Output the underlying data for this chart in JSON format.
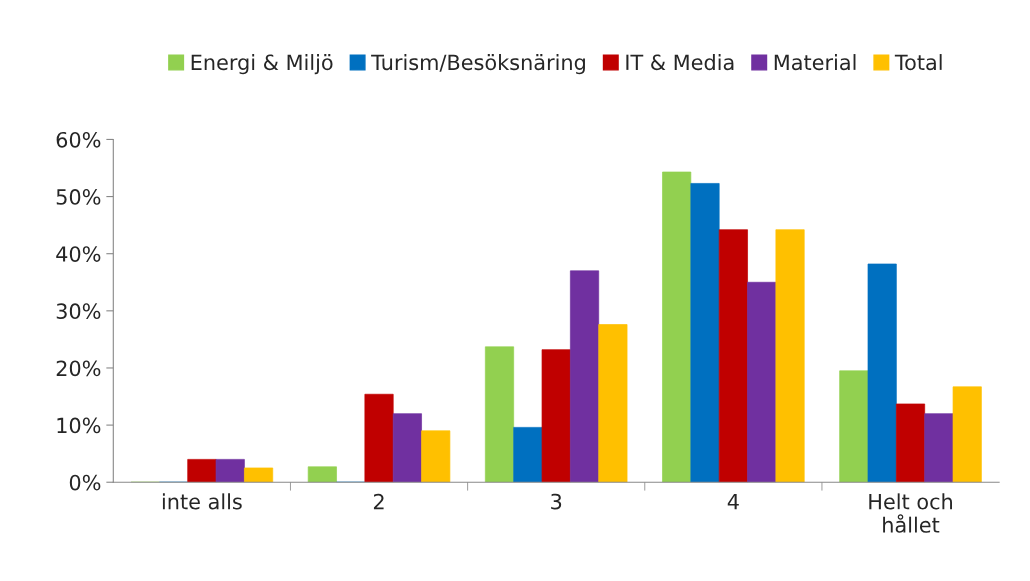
{
  "chart_data": {
    "type": "bar",
    "categories": [
      "inte alls",
      "2",
      "3",
      "4",
      "Helt och\nhållet"
    ],
    "series": [
      {
        "name": "Energi & Miljö",
        "color": "#92d050",
        "values": [
          0,
          2.7,
          23.7,
          54.3,
          19.5
        ]
      },
      {
        "name": "Turism/Besöksnäring",
        "color": "#0070c0",
        "values": [
          0,
          0,
          9.6,
          52.3,
          38.2
        ]
      },
      {
        "name": "IT & Media",
        "color": "#c00000",
        "values": [
          4.0,
          15.4,
          23.2,
          44.2,
          13.7
        ]
      },
      {
        "name": "Material",
        "color": "#7030a0",
        "values": [
          4.0,
          12.0,
          37.0,
          35.0,
          12.0
        ]
      },
      {
        "name": "Total",
        "color": "#ffc000",
        "values": [
          2.5,
          9.0,
          27.6,
          44.2,
          16.7
        ]
      }
    ],
    "ylim": [
      0,
      60
    ],
    "yticks": [
      {
        "value": 0,
        "label": "0%"
      },
      {
        "value": 10,
        "label": "10%"
      },
      {
        "value": 20,
        "label": "20%"
      },
      {
        "value": 30,
        "label": "30%"
      },
      {
        "value": 40,
        "label": "40%"
      },
      {
        "value": 50,
        "label": "50%"
      },
      {
        "value": 60,
        "label": "60%"
      }
    ],
    "grid": false,
    "legend": "top"
  }
}
